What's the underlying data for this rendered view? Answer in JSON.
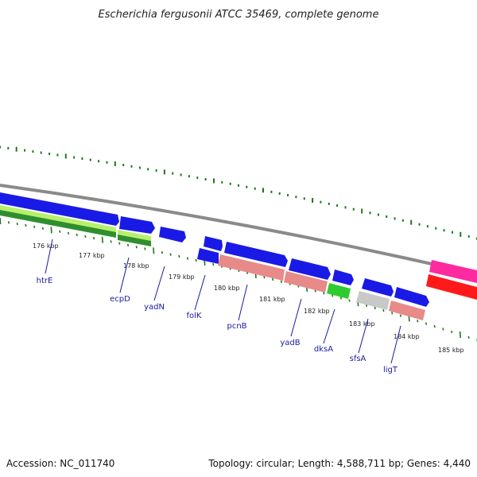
{
  "title": "Escherichia fergusonii ATCC 35469, complete genome",
  "accession": "Accession: NC_011740",
  "summary": "Topology: circular; Length: 4,588,711 bp; Genes: 4,440",
  "colors": {
    "blue": "#1a1ae6",
    "salmon": "#e88a8a",
    "green": "#2ecc2e",
    "lightgreen": "#b7f06a",
    "darkgreen": "#2f8f2f",
    "gray": "#c8c8c8",
    "pink": "#ff2aa0",
    "red": "#ff1a1a",
    "backbone": "#8a8a8a",
    "tick": "#1a7a1a",
    "label": "#1a1aa0"
  },
  "kbp_ticks": [
    "176 kbp",
    "177 kbp",
    "178 kbp",
    "179 kbp",
    "180 kbp",
    "181 kbp",
    "182 kbp",
    "183 kbp",
    "184 kbp",
    "185 kbp"
  ],
  "gene_labels": [
    "htrE",
    "ecpD",
    "yadN",
    "folK",
    "pcnB",
    "yadB",
    "dksA",
    "sfsA",
    "ligT"
  ]
}
